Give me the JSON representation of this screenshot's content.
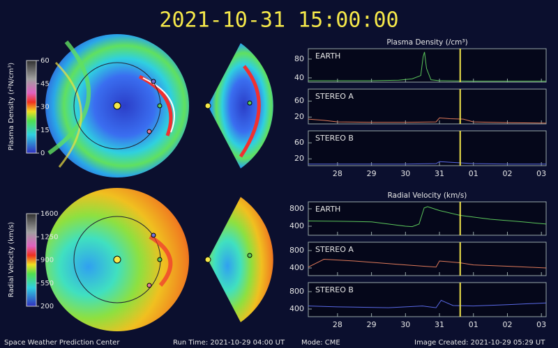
{
  "title": "2021-10-31 15:00:00",
  "footer": {
    "left": "Space Weather Prediction Center",
    "run_time": "Run Time: 2021-10-29 04:00 UT",
    "mode": "Mode: CME",
    "image_created": "Image Created: 2021-10-29 05:29 UT"
  },
  "colorbars": [
    {
      "label": "Plasma Density (r²N/cm³)",
      "lim": [
        0,
        60
      ],
      "ticks": [
        0,
        15,
        30,
        45,
        60
      ]
    },
    {
      "label": "Radial Velocity (km/s)",
      "lim": [
        200,
        1600
      ],
      "ticks": [
        200,
        550,
        900,
        1250,
        1600
      ]
    }
  ],
  "chart_data": [
    {
      "type": "line",
      "title": "Plasma Density (/cm³)",
      "label": "EARTH",
      "xlim": [
        27.14,
        34.14
      ],
      "ylim": [
        31,
        102
      ],
      "yticks": [
        40,
        80
      ],
      "marker_x": 31.61,
      "series": [
        {
          "name": "EARTH",
          "color": "#5cc85c",
          "x": [
            27.14,
            28,
            29,
            29.8,
            30.2,
            30.45,
            30.52,
            30.56,
            30.62,
            30.75,
            31,
            32,
            33,
            34.14
          ],
          "values": [
            34,
            34,
            34,
            35,
            38,
            45,
            85,
            95,
            60,
            36,
            34,
            33,
            33,
            33
          ]
        }
      ]
    },
    {
      "type": "line",
      "label": "STEREO A",
      "xlim": [
        27.14,
        34.14
      ],
      "ylim": [
        3,
        90
      ],
      "yticks": [
        20,
        60
      ],
      "marker_x": 31.61,
      "series": [
        {
          "name": "STEREO A",
          "color": "#e07a5a",
          "x": [
            27.14,
            27.6,
            28,
            29,
            30,
            30.9,
            31,
            31.3,
            31.7,
            32,
            33,
            34.14
          ],
          "values": [
            15,
            12,
            8,
            7,
            7,
            8,
            18,
            16,
            15,
            8,
            6,
            5
          ]
        }
      ]
    },
    {
      "type": "line",
      "label": "STEREO B",
      "xlim": [
        27.14,
        34.14
      ],
      "ylim": [
        3,
        90
      ],
      "yticks": [
        20,
        60
      ],
      "marker_x": 31.61,
      "xticks": [
        28,
        29,
        30,
        31,
        {
          "value": 32,
          "label": "01"
        },
        {
          "value": 33,
          "label": "02"
        },
        {
          "value": 34,
          "label": "03"
        }
      ],
      "series": [
        {
          "name": "STEREO B",
          "color": "#5a6ae8",
          "x": [
            27.14,
            28,
            29,
            30,
            30.9,
            31,
            31.4,
            32,
            33,
            34.14
          ],
          "values": [
            7,
            7,
            7,
            7,
            8,
            13,
            11,
            8,
            7,
            7
          ]
        }
      ]
    },
    {
      "type": "line",
      "title": "Radial Velocity (km/s)",
      "label": "EARTH",
      "xlim": [
        27.14,
        34.14
      ],
      "ylim": [
        192,
        960
      ],
      "yticks": [
        400,
        800
      ],
      "marker_x": 31.61,
      "series": [
        {
          "name": "EARTH",
          "color": "#5cc85c",
          "x": [
            27.14,
            28,
            29,
            30,
            30.2,
            30.4,
            30.55,
            30.65,
            31,
            31.6,
            32.5,
            33.3,
            34.14
          ],
          "values": [
            520,
            515,
            500,
            400,
            390,
            450,
            820,
            850,
            760,
            650,
            560,
            510,
            450
          ]
        }
      ]
    },
    {
      "type": "line",
      "label": "STEREO A",
      "xlim": [
        27.14,
        34.14
      ],
      "ylim": [
        224,
        992
      ],
      "yticks": [
        400,
        800
      ],
      "marker_x": 31.61,
      "series": [
        {
          "name": "STEREO A",
          "color": "#e07a5a",
          "x": [
            27.14,
            27.6,
            28.5,
            30,
            30.9,
            31,
            31.6,
            32,
            33,
            34.14
          ],
          "values": [
            420,
            600,
            560,
            470,
            420,
            560,
            520,
            470,
            440,
            400
          ]
        }
      ]
    },
    {
      "type": "line",
      "label": "STEREO B",
      "xlim": [
        27.14,
        34.14
      ],
      "ylim": [
        224,
        1008
      ],
      "yticks": [
        400,
        800
      ],
      "marker_x": 31.61,
      "xticks": [
        28,
        29,
        30,
        31,
        {
          "value": 32,
          "label": "01"
        },
        {
          "value": 33,
          "label": "02"
        },
        {
          "value": 34,
          "label": "03"
        }
      ],
      "series": [
        {
          "name": "STEREO B",
          "color": "#5a6ae8",
          "x": [
            27.14,
            28,
            29.5,
            30.5,
            30.9,
            31.05,
            31.4,
            32,
            33,
            34.14
          ],
          "values": [
            470,
            450,
            430,
            470,
            430,
            600,
            480,
            470,
            500,
            540
          ]
        }
      ]
    }
  ]
}
